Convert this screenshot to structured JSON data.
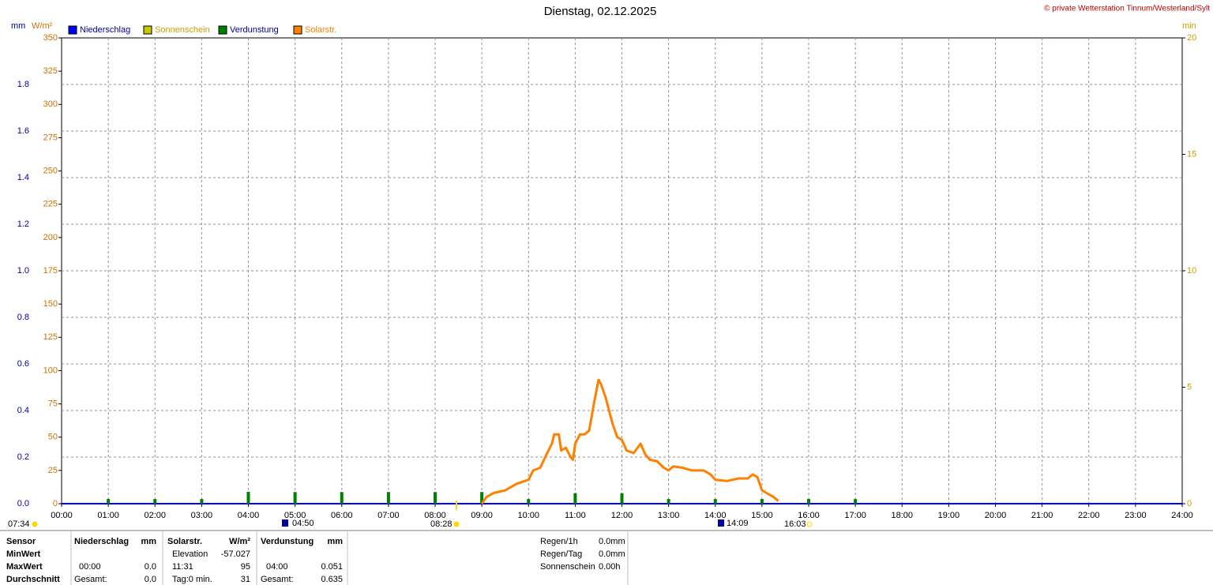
{
  "chart_data": {
    "type": "line",
    "title": "Dienstag, 02.12.2025",
    "source": "© private Wetterstation Tinnum/Westerland/Sylt",
    "axis_units": {
      "y": "mm",
      "y3": "W/m²",
      "y2": "min"
    },
    "xlim": [
      0,
      24
    ],
    "xticks": [
      {
        "value": 0,
        "label": "00:00"
      },
      {
        "value": 1,
        "label": "01:00"
      },
      {
        "value": 2,
        "label": "02:00"
      },
      {
        "value": 3,
        "label": "03:00"
      },
      {
        "value": 4,
        "label": "04:00"
      },
      {
        "value": 5,
        "label": "05:00"
      },
      {
        "value": 6,
        "label": "06:00"
      },
      {
        "value": 7,
        "label": "07:00"
      },
      {
        "value": 8,
        "label": "08:00"
      },
      {
        "value": 9,
        "label": "09:00"
      },
      {
        "value": 10,
        "label": "10:00"
      },
      {
        "value": 11,
        "label": "11:00"
      },
      {
        "value": 12,
        "label": "12:00"
      },
      {
        "value": 13,
        "label": "13:00"
      },
      {
        "value": 14,
        "label": "14:00"
      },
      {
        "value": 15,
        "label": "15:00"
      },
      {
        "value": 16,
        "label": "16:00"
      },
      {
        "value": 17,
        "label": "17:00"
      },
      {
        "value": 18,
        "label": "18:00"
      },
      {
        "value": 19,
        "label": "19:00"
      },
      {
        "value": 20,
        "label": "20:00"
      },
      {
        "value": 21,
        "label": "21:00"
      },
      {
        "value": 22,
        "label": "22:00"
      },
      {
        "value": 23,
        "label": "23:00"
      },
      {
        "value": 24,
        "label": "24:00"
      }
    ],
    "ylim": [
      0,
      2.0
    ],
    "yticks": [
      {
        "value": 0,
        "label": "0.0"
      },
      0.2,
      0.4,
      0.6,
      0.8,
      {
        "value": 1,
        "label": "1.0"
      },
      1.2,
      1.4,
      1.6,
      1.8
    ],
    "y3lim": [
      0,
      350
    ],
    "y3ticks": [
      0,
      25,
      50,
      75,
      100,
      125,
      150,
      175,
      200,
      225,
      250,
      275,
      300,
      325,
      350
    ],
    "y2lim": [
      0,
      20
    ],
    "y2ticks": [
      0,
      5,
      10,
      15,
      20
    ],
    "grid": true,
    "series": [
      {
        "name": "Niederschlag",
        "color": "#0000ff"
      },
      {
        "name": "Sonnenschein",
        "color": "#c8c800"
      },
      {
        "name": "Verdunstung",
        "color": "#008000",
        "type": "bar",
        "x": [
          1,
          2,
          3,
          4,
          5,
          6,
          7,
          8,
          9,
          10,
          11,
          12,
          13,
          14,
          15,
          16,
          17
        ],
        "values": [
          0.02,
          0.02,
          0.02,
          0.051,
          0.05,
          0.05,
          0.05,
          0.05,
          0.05,
          0.02,
          0.045,
          0.045,
          0.02,
          0.02,
          0.02,
          0.02,
          0.02
        ]
      },
      {
        "name": "Solarstr.",
        "color": "#ff8000",
        "axis": "y3",
        "x": [
          9.0,
          9.1,
          9.25,
          9.5,
          9.75,
          10.0,
          10.1,
          10.25,
          10.4,
          10.5,
          10.55,
          10.65,
          10.7,
          10.8,
          10.9,
          10.95,
          11.0,
          11.1,
          11.2,
          11.3,
          11.4,
          11.5,
          11.55,
          11.65,
          11.8,
          11.9,
          12.0,
          12.1,
          12.25,
          12.4,
          12.5,
          12.6,
          12.75,
          12.9,
          13.0,
          13.1,
          13.3,
          13.5,
          13.75,
          13.9,
          14.0,
          14.25,
          14.5,
          14.7,
          14.8,
          14.9,
          15.0,
          15.1,
          15.25,
          15.35
        ],
        "values": [
          0,
          5,
          8,
          10,
          15,
          18,
          25,
          27,
          38,
          45,
          52,
          52,
          40,
          42,
          35,
          33,
          45,
          52,
          52,
          55,
          75,
          93,
          90,
          80,
          60,
          50,
          48,
          40,
          38,
          45,
          37,
          33,
          32,
          27,
          25,
          28,
          27,
          25,
          25,
          22,
          18,
          17,
          19,
          19,
          22,
          20,
          10,
          8,
          5,
          2
        ]
      }
    ],
    "annotations": [
      "07:34",
      "04:50",
      "08:28",
      "14:09",
      "16:03"
    ]
  },
  "stats": {
    "header": [
      "Sensor",
      "Niederschlag",
      "mm",
      "Solarstr.",
      "W/m²",
      "Verdunstung",
      "mm"
    ],
    "rows": [
      [
        "MinWert",
        "",
        "",
        "Elevation",
        "-57.027",
        "",
        ""
      ],
      [
        "MaxWert",
        "00:00",
        "0.0",
        "11:31",
        "95",
        "04:00",
        "0.051"
      ],
      [
        "Durchschnitt",
        "Gesamt:",
        "0.0",
        "Tag:0 min.",
        "31",
        "Gesamt:",
        "0.635"
      ]
    ]
  },
  "info": [
    [
      "Regen/1h",
      "0.0mm"
    ],
    [
      "Regen/Tag",
      "0.0mm"
    ],
    [
      "Sonnenschein",
      "0.00h"
    ]
  ]
}
